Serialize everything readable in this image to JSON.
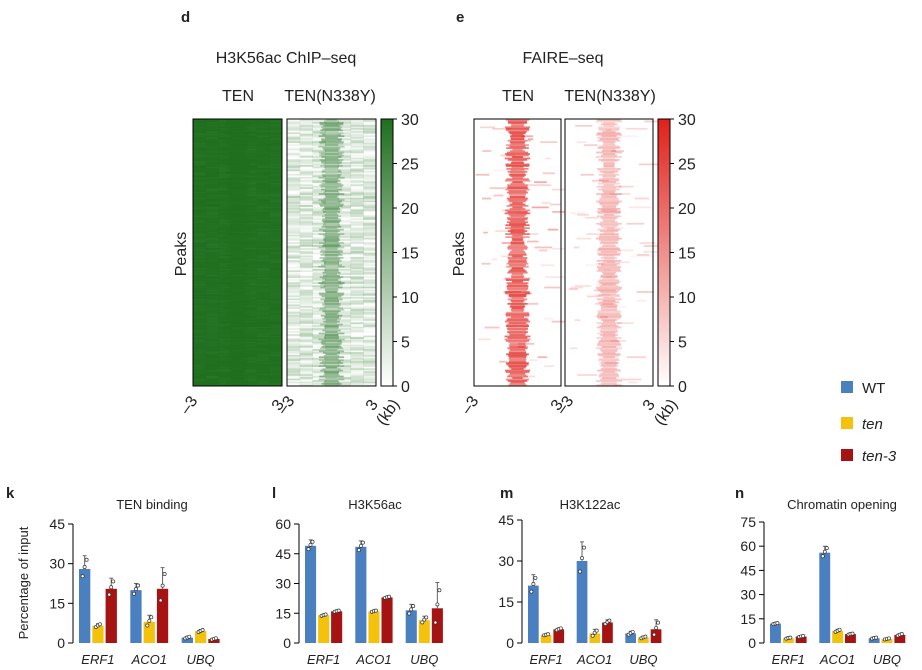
{
  "colors": {
    "wt": "#4a7fc0",
    "ten": "#f4c20d",
    "ten3": "#a51412",
    "chip": "#1f6f1f",
    "faire": "#e0201a"
  },
  "heatmaps": [
    {
      "letter": "d",
      "title": "H3K56ac ChIP–seq",
      "cols": [
        "TEN",
        "TEN(N338Y)"
      ],
      "ylabel": "Peaks",
      "color": "#1f6f1f",
      "scale_ticks": [
        "30",
        "25",
        "20",
        "15",
        "10",
        "5",
        "0"
      ],
      "x_ticks": [
        "–3",
        "3",
        "–3",
        "3"
      ],
      "unit": "(kb)"
    },
    {
      "letter": "e",
      "title": "FAIRE–seq",
      "cols": [
        "TEN",
        "TEN(N338Y)"
      ],
      "ylabel": "Peaks",
      "color": "#e0201a",
      "scale_ticks": [
        "30",
        "25",
        "20",
        "15",
        "10",
        "5",
        "0"
      ],
      "x_ticks": [
        "–3",
        "3",
        "–3",
        "3"
      ],
      "unit": "(kb)"
    }
  ],
  "legend": [
    {
      "label": "WT",
      "color": "#4a7fc0",
      "italic": false
    },
    {
      "label": "ten",
      "color": "#f4c20d",
      "italic": true
    },
    {
      "label": "ten-3",
      "color": "#a51412",
      "italic": true
    }
  ],
  "chart_data": [
    {
      "type": "bar",
      "letter": "k",
      "title": "TEN binding",
      "ylabel": "Percentage of input",
      "categories": [
        "ERF1",
        "ACO1",
        "UBQ"
      ],
      "ylim": [
        0,
        45
      ],
      "yticks": [
        "0",
        "15",
        "30",
        "45"
      ],
      "series": [
        {
          "name": "WT",
          "values": [
            28,
            20,
            2
          ],
          "errors": [
            5,
            2.5,
            0.5
          ]
        },
        {
          "name": "ten",
          "values": [
            6.5,
            8,
            4.5
          ],
          "errors": [
            0.8,
            2.5,
            0.6
          ]
        },
        {
          "name": "ten-3",
          "values": [
            20.5,
            20.5,
            1.5
          ],
          "errors": [
            4,
            8,
            0.4
          ]
        }
      ]
    },
    {
      "type": "bar",
      "letter": "l",
      "title": "H3K56ac",
      "ylabel": "",
      "categories": [
        "ERF1",
        "ACO1",
        "UBQ"
      ],
      "ylim": [
        0,
        60
      ],
      "yticks": [
        "0",
        "15",
        "30",
        "45",
        "60"
      ],
      "series": [
        {
          "name": "WT",
          "values": [
            49,
            48.5,
            16.5
          ],
          "errors": [
            3,
            3,
            3
          ]
        },
        {
          "name": "ten",
          "values": [
            14,
            16,
            11.5
          ],
          "errors": [
            0.5,
            0.5,
            2
          ]
        },
        {
          "name": "ten-3",
          "values": [
            16,
            23,
            17.5
          ],
          "errors": [
            0.5,
            0.5,
            13
          ]
        }
      ]
    },
    {
      "type": "bar",
      "letter": "m",
      "title": "H3K122ac",
      "ylabel": "",
      "categories": [
        "ERF1",
        "ACO1",
        "UBQ"
      ],
      "ylim": [
        0,
        45
      ],
      "yticks": [
        "0",
        "15",
        "30",
        "45"
      ],
      "series": [
        {
          "name": "WT",
          "values": [
            21,
            30,
            3.5
          ],
          "errors": [
            4,
            7,
            0.8
          ]
        },
        {
          "name": "ten",
          "values": [
            3,
            3.5,
            2
          ],
          "errors": [
            0.3,
            1.5,
            0.5
          ]
        },
        {
          "name": "ten-3",
          "values": [
            5,
            7.5,
            5
          ],
          "errors": [
            0.5,
            1,
            3.5
          ]
        }
      ]
    },
    {
      "type": "bar",
      "letter": "n",
      "title": "Chromatin opening",
      "ylabel": "",
      "categories": [
        "ERF1",
        "ACO1",
        "UBQ"
      ],
      "ylim": [
        0,
        75
      ],
      "yticks": [
        "0",
        "15",
        "30",
        "45",
        "60",
        "75"
      ],
      "series": [
        {
          "name": "WT",
          "values": [
            12,
            56,
            3
          ],
          "errors": [
            0.5,
            4,
            0.5
          ]
        },
        {
          "name": "ten",
          "values": [
            3,
            7.5,
            2.5
          ],
          "errors": [
            0.5,
            1,
            0.5
          ]
        },
        {
          "name": "ten-3",
          "values": [
            4,
            5.5,
            5
          ],
          "errors": [
            0.5,
            0.5,
            0.8
          ]
        }
      ]
    }
  ]
}
